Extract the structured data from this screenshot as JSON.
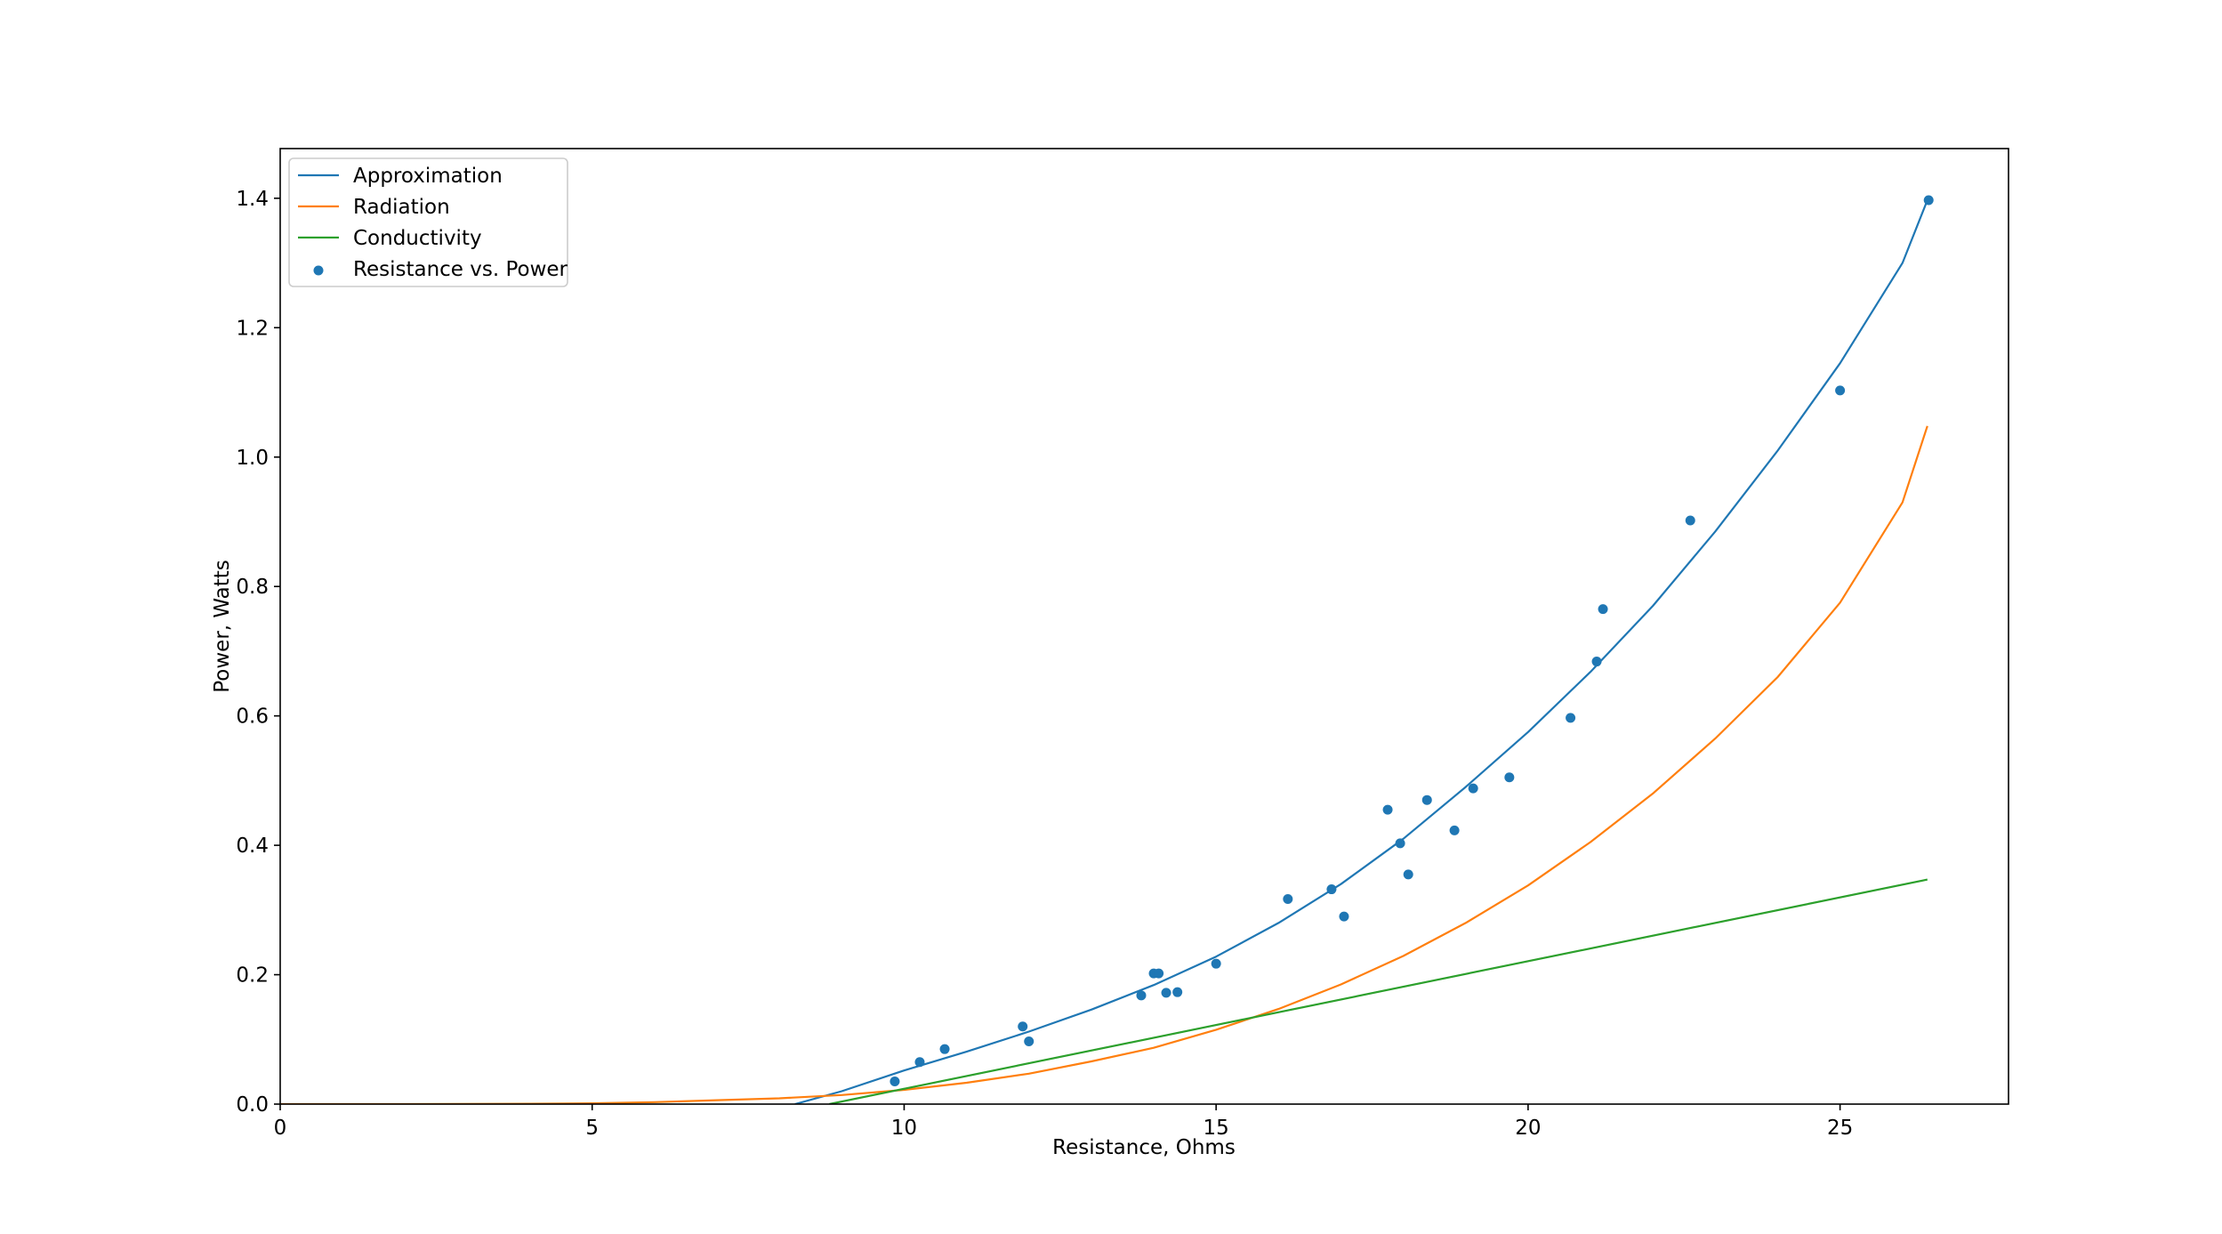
{
  "chart_data": {
    "type": "line",
    "title": "",
    "xlabel": "Resistance, Ohms",
    "ylabel": "Power, Watts",
    "xlim": [
      0,
      27.7
    ],
    "ylim": [
      0,
      1.4768
    ],
    "x_ticks": [
      0,
      5,
      10,
      15,
      20,
      25
    ],
    "y_ticks": [
      0.0,
      0.2,
      0.4,
      0.6,
      0.8,
      1.0,
      1.2,
      1.4
    ],
    "x_tick_labels": [
      "0",
      "5",
      "10",
      "15",
      "20",
      "25"
    ],
    "y_tick_labels": [
      "0.0",
      "0.2",
      "0.4",
      "0.6",
      "0.8",
      "1.0",
      "1.2",
      "1.4"
    ],
    "grid": false,
    "legend_position": "top-left",
    "series": [
      {
        "name": "Approximation",
        "kind": "line",
        "color": "#1f77b4",
        "x": [
          8.25,
          9,
          10,
          11,
          12,
          13,
          14,
          15,
          16,
          17,
          18,
          19,
          20,
          21,
          22,
          23,
          24,
          25,
          26,
          26.4
        ],
        "y": [
          0.0,
          0.02,
          0.052,
          0.081,
          0.112,
          0.146,
          0.184,
          0.228,
          0.28,
          0.34,
          0.41,
          0.49,
          0.575,
          0.668,
          0.77,
          0.885,
          1.01,
          1.145,
          1.3,
          1.397
        ]
      },
      {
        "name": "Radiation",
        "kind": "line",
        "color": "#ff7f0e",
        "x": [
          0,
          2,
          4,
          5,
          6,
          7,
          8,
          9,
          10,
          11,
          12,
          13,
          14,
          15,
          16,
          17,
          18,
          19,
          20,
          21,
          22,
          23,
          24,
          25,
          26,
          26.4
        ],
        "y": [
          0.0,
          0.0,
          0.0005,
          0.0012,
          0.003,
          0.006,
          0.009,
          0.014,
          0.022,
          0.033,
          0.047,
          0.066,
          0.087,
          0.115,
          0.147,
          0.185,
          0.229,
          0.28,
          0.338,
          0.405,
          0.48,
          0.565,
          0.66,
          0.775,
          0.93,
          1.048
        ]
      },
      {
        "name": "Conductivity",
        "kind": "line",
        "color": "#2ca02c",
        "x": [
          8.8,
          26.4
        ],
        "y": [
          0.0,
          0.347
        ]
      },
      {
        "name": "Resistance vs. Power",
        "kind": "scatter",
        "color": "#1f77b4",
        "x": [
          9.85,
          10.25,
          10.65,
          11.9,
          12.0,
          13.8,
          14.0,
          14.08,
          14.2,
          14.38,
          15.0,
          16.15,
          16.85,
          17.05,
          17.75,
          17.95,
          18.08,
          18.38,
          18.82,
          19.12,
          19.7,
          20.68,
          21.1,
          21.2,
          22.6,
          25.0,
          26.42
        ],
        "y": [
          0.035,
          0.065,
          0.085,
          0.12,
          0.097,
          0.168,
          0.202,
          0.202,
          0.172,
          0.173,
          0.217,
          0.317,
          0.332,
          0.29,
          0.455,
          0.403,
          0.355,
          0.47,
          0.423,
          0.488,
          0.505,
          0.597,
          0.684,
          0.765,
          0.902,
          1.103,
          1.397
        ]
      }
    ]
  }
}
